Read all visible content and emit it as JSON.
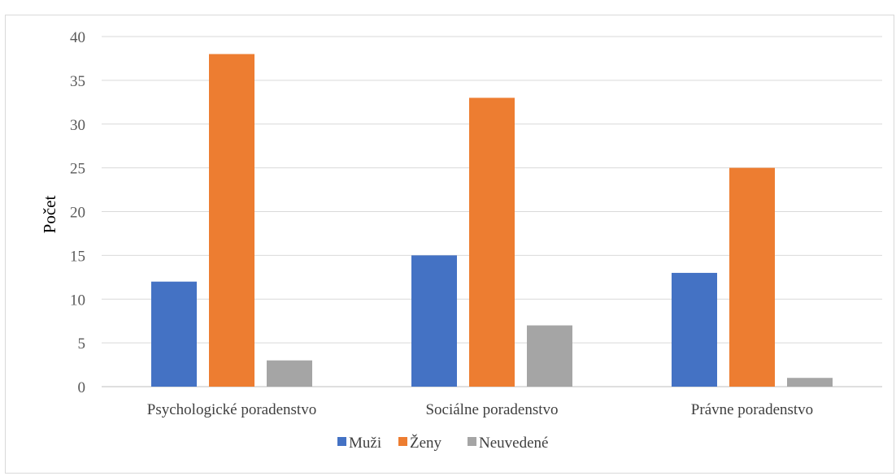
{
  "chart_data": {
    "type": "bar",
    "title": "",
    "xlabel": "",
    "ylabel": "Počet",
    "ylim": [
      0,
      40
    ],
    "yticks": [
      0,
      5,
      10,
      15,
      20,
      25,
      30,
      35,
      40
    ],
    "grid": true,
    "legend_position": "bottom",
    "categories": [
      "Psychologické poradenstvo",
      "Sociálne poradenstvo",
      "Právne poradenstvo"
    ],
    "series": [
      {
        "name": "Muži",
        "color": "#4472c4",
        "values": [
          12,
          15,
          13
        ]
      },
      {
        "name": "Ženy",
        "color": "#ed7d31",
        "values": [
          38,
          33,
          25
        ]
      },
      {
        "name": "Neuvedené",
        "color": "#a5a5a5",
        "values": [
          3,
          7,
          1
        ]
      }
    ]
  }
}
